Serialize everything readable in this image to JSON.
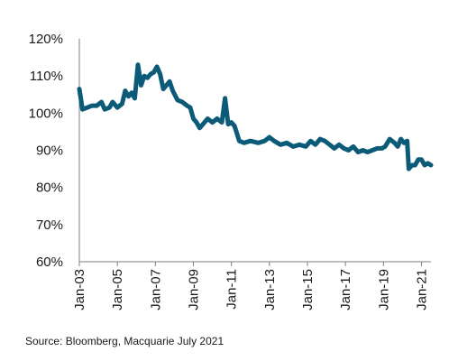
{
  "chart_data": {
    "type": "line",
    "title": "",
    "xlabel": "",
    "ylabel": "",
    "ylim": [
      60,
      120
    ],
    "xlim": [
      "2003-01",
      "2021-07"
    ],
    "grid": false,
    "legend": "none",
    "y_ticks": [
      "60%",
      "70%",
      "80%",
      "90%",
      "100%",
      "110%",
      "120%"
    ],
    "x_ticks": [
      "Jan-03",
      "Jan-05",
      "Jan-07",
      "Jan-09",
      "Jan-11",
      "Jan-13",
      "Jan-15",
      "Jan-17",
      "Jan-19",
      "Jan-21"
    ],
    "series": [
      {
        "color": "#0b5a78",
        "points": [
          [
            "2003-01",
            106.5
          ],
          [
            "2003-03",
            101.0
          ],
          [
            "2003-06",
            101.5
          ],
          [
            "2003-09",
            102.0
          ],
          [
            "2003-12",
            102.0
          ],
          [
            "2004-03",
            103.0
          ],
          [
            "2004-05",
            101.0
          ],
          [
            "2004-08",
            101.5
          ],
          [
            "2004-10",
            103.0
          ],
          [
            "2005-01",
            101.5
          ],
          [
            "2005-04",
            102.5
          ],
          [
            "2005-06",
            106.0
          ],
          [
            "2005-08",
            104.5
          ],
          [
            "2005-10",
            105.5
          ],
          [
            "2005-12",
            104.0
          ],
          [
            "2006-02",
            113.0
          ],
          [
            "2006-04",
            107.5
          ],
          [
            "2006-06",
            110.0
          ],
          [
            "2006-08",
            109.5
          ],
          [
            "2006-10",
            110.5
          ],
          [
            "2006-12",
            111.0
          ],
          [
            "2007-02",
            112.5
          ],
          [
            "2007-04",
            110.5
          ],
          [
            "2007-06",
            106.5
          ],
          [
            "2007-08",
            107.5
          ],
          [
            "2007-10",
            108.5
          ],
          [
            "2007-12",
            106.0
          ],
          [
            "2008-03",
            103.5
          ],
          [
            "2008-06",
            103.0
          ],
          [
            "2008-09",
            102.0
          ],
          [
            "2008-11",
            101.5
          ],
          [
            "2009-01",
            98.5
          ],
          [
            "2009-03",
            97.5
          ],
          [
            "2009-05",
            96.0
          ],
          [
            "2009-07",
            97.0
          ],
          [
            "2009-10",
            98.5
          ],
          [
            "2010-01",
            97.5
          ],
          [
            "2010-04",
            98.5
          ],
          [
            "2010-07",
            97.5
          ],
          [
            "2010-09",
            104.0
          ],
          [
            "2010-11",
            97.0
          ],
          [
            "2011-01",
            97.5
          ],
          [
            "2011-03",
            96.5
          ],
          [
            "2011-06",
            92.5
          ],
          [
            "2011-09",
            92.0
          ],
          [
            "2012-01",
            92.5
          ],
          [
            "2012-06",
            92.0
          ],
          [
            "2012-10",
            92.5
          ],
          [
            "2013-01",
            93.5
          ],
          [
            "2013-04",
            92.5
          ],
          [
            "2013-08",
            91.5
          ],
          [
            "2013-12",
            92.0
          ],
          [
            "2014-04",
            91.0
          ],
          [
            "2014-08",
            91.5
          ],
          [
            "2014-12",
            91.0
          ],
          [
            "2015-03",
            92.5
          ],
          [
            "2015-06",
            91.5
          ],
          [
            "2015-09",
            93.0
          ],
          [
            "2015-12",
            92.5
          ],
          [
            "2016-03",
            91.5
          ],
          [
            "2016-06",
            90.5
          ],
          [
            "2016-09",
            91.5
          ],
          [
            "2016-12",
            90.5
          ],
          [
            "2017-03",
            90.0
          ],
          [
            "2017-06",
            91.0
          ],
          [
            "2017-09",
            89.5
          ],
          [
            "2017-12",
            90.0
          ],
          [
            "2018-03",
            89.5
          ],
          [
            "2018-06",
            90.0
          ],
          [
            "2018-09",
            90.5
          ],
          [
            "2018-12",
            90.5
          ],
          [
            "2019-02",
            91.0
          ],
          [
            "2019-05",
            93.0
          ],
          [
            "2019-08",
            92.0
          ],
          [
            "2019-10",
            91.0
          ],
          [
            "2019-12",
            93.0
          ],
          [
            "2020-02",
            92.0
          ],
          [
            "2020-04",
            92.5
          ],
          [
            "2020-05",
            85.0
          ],
          [
            "2020-07",
            86.0
          ],
          [
            "2020-09",
            86.0
          ],
          [
            "2020-11",
            87.5
          ],
          [
            "2021-01",
            87.5
          ],
          [
            "2021-03",
            86.0
          ],
          [
            "2021-05",
            86.5
          ],
          [
            "2021-07",
            86.0
          ]
        ]
      }
    ]
  },
  "source": "Source: Bloomberg, Macquarie July 2021"
}
